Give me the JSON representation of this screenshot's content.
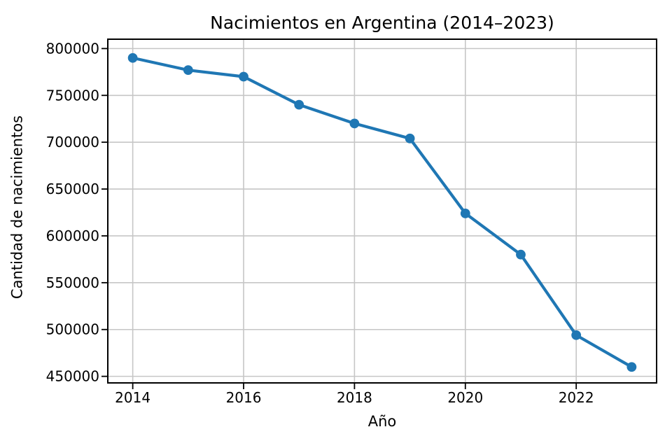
{
  "chart_data": {
    "type": "line",
    "title": "Nacimientos en Argentina (2014–2023)",
    "xlabel": "Año",
    "ylabel": "Cantidad de nacimientos",
    "x": [
      2014,
      2015,
      2016,
      2017,
      2018,
      2019,
      2020,
      2021,
      2022,
      2023
    ],
    "y": [
      790000,
      777000,
      770000,
      740000,
      720000,
      704000,
      624000,
      580000,
      494000,
      460000
    ],
    "xticks": [
      2014,
      2016,
      2018,
      2020,
      2022
    ],
    "yticks": [
      450000,
      500000,
      550000,
      600000,
      650000,
      700000,
      750000,
      800000
    ],
    "xlim": [
      2013.55,
      2023.45
    ],
    "ylim": [
      443000,
      810000
    ],
    "grid": true,
    "legend": false,
    "marker": "circle",
    "line_color": "#1f77b4",
    "grid_color": "#c6c6c6",
    "axis_color": "#000000",
    "background_color": "#ffffff"
  }
}
